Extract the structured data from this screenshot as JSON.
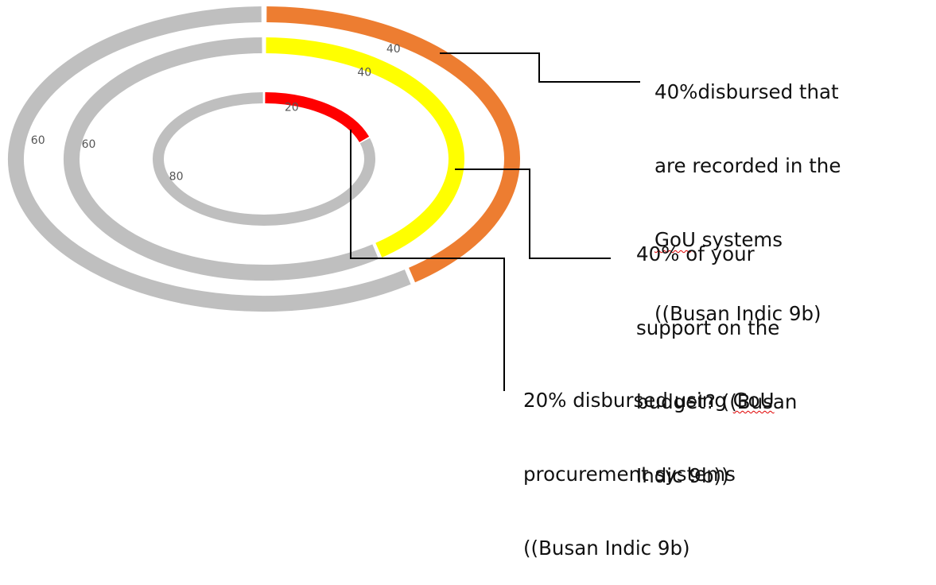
{
  "chart_data": {
    "type": "doughnut",
    "series": [
      {
        "values": [
          40,
          60
        ],
        "labels": [
          "40",
          "60"
        ],
        "colors": [
          "#ed7d31",
          "#bfbfbf"
        ],
        "callout": [
          "40%disbursed that",
          "are recorded in the",
          "GoU systems",
          "((Busan Indic 9b)"
        ]
      },
      {
        "values": [
          40,
          60
        ],
        "labels": [
          "40",
          "60"
        ],
        "colors": [
          "#ffff00",
          "#bfbfbf"
        ],
        "callout": [
          "40% of your",
          "support on the",
          "budget? ((Busan",
          "Indic 9b))"
        ]
      },
      {
        "values": [
          20,
          80
        ],
        "labels": [
          "20",
          "80"
        ],
        "colors": [
          "#ff0000",
          "#bfbfbf"
        ],
        "callout": [
          "20% disbursed using GoU",
          "procurement systems",
          "((Busan Indic 9b)"
        ]
      }
    ]
  }
}
